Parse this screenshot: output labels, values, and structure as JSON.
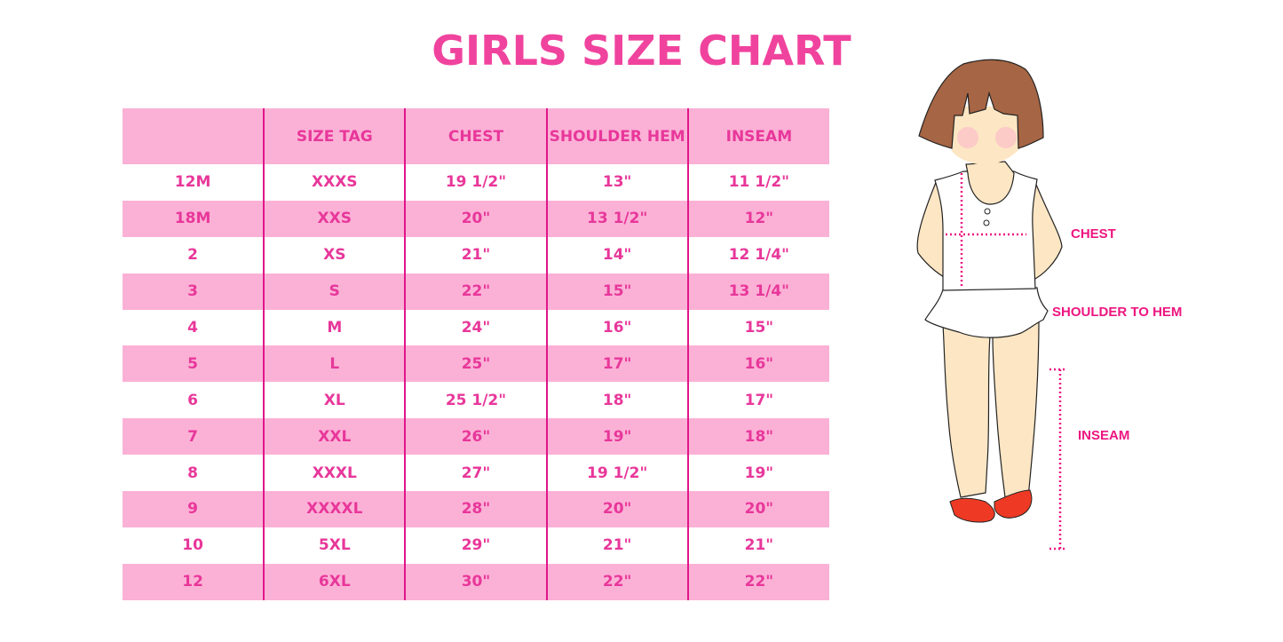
{
  "title": "GIRLS SIZE CHART",
  "colors": {
    "title": "#f0439e",
    "row_pink": "#fbb1d6",
    "text": "#e8379a",
    "divider": "#e0158a"
  },
  "table": {
    "headers": [
      "",
      "SIZE TAG",
      "CHEST",
      "SHOULDER HEM",
      "INSEAM"
    ],
    "rows": [
      [
        "12M",
        "XXXS",
        "19 1/2\"",
        "13\"",
        "11 1/2\""
      ],
      [
        "18M",
        "XXS",
        "20\"",
        "13 1/2\"",
        "12\""
      ],
      [
        "2",
        "XS",
        "21\"",
        "14\"",
        "12 1/4\""
      ],
      [
        "3",
        "S",
        "22\"",
        "15\"",
        "13 1/4\""
      ],
      [
        "4",
        "M",
        "24\"",
        "16\"",
        "15\""
      ],
      [
        "5",
        "L",
        "25\"",
        "17\"",
        "16\""
      ],
      [
        "6",
        "XL",
        "25 1/2\"",
        "18\"",
        "17\""
      ],
      [
        "7",
        "XXL",
        "26\"",
        "19\"",
        "18\""
      ],
      [
        "8",
        "XXXL",
        "27\"",
        "19 1/2\"",
        "19\""
      ],
      [
        "9",
        "XXXXL",
        "28\"",
        "20\"",
        "20\""
      ],
      [
        "10",
        "5XL",
        "29\"",
        "21\"",
        "21\""
      ],
      [
        "12",
        "6XL",
        "30\"",
        "22\"",
        "22\""
      ]
    ]
  },
  "figure": {
    "labels": {
      "chest": "CHEST",
      "shoulder_to_hem": "SHOULDER TO HEM",
      "inseam": "INSEAM"
    }
  }
}
